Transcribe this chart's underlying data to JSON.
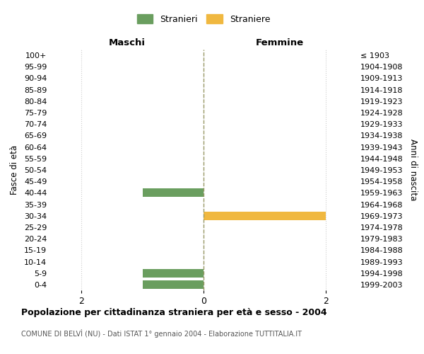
{
  "age_groups": [
    "0-4",
    "5-9",
    "10-14",
    "15-19",
    "20-24",
    "25-29",
    "30-34",
    "35-39",
    "40-44",
    "45-49",
    "50-54",
    "55-59",
    "60-64",
    "65-69",
    "70-74",
    "75-79",
    "80-84",
    "85-89",
    "90-94",
    "95-99",
    "100+"
  ],
  "birth_years": [
    "1999-2003",
    "1994-1998",
    "1989-1993",
    "1984-1988",
    "1979-1983",
    "1974-1978",
    "1969-1973",
    "1964-1968",
    "1959-1963",
    "1954-1958",
    "1949-1953",
    "1944-1948",
    "1939-1943",
    "1934-1938",
    "1929-1933",
    "1924-1928",
    "1919-1923",
    "1914-1918",
    "1909-1913",
    "1904-1908",
    "≤ 1903"
  ],
  "males": [
    1,
    1,
    0,
    0,
    0,
    0,
    0,
    0,
    1,
    0,
    0,
    0,
    0,
    0,
    0,
    0,
    0,
    0,
    0,
    0,
    0
  ],
  "females": [
    0,
    0,
    0,
    0,
    0,
    0,
    2,
    0,
    0,
    0,
    0,
    0,
    0,
    0,
    0,
    0,
    0,
    0,
    0,
    0,
    0
  ],
  "male_color": "#6a9e5f",
  "female_color": "#f0b840",
  "male_label": "Stranieri",
  "female_label": "Straniere",
  "title": "Popolazione per cittadinanza straniera per età e sesso - 2004",
  "subtitle": "COMUNE DI BELVÌ (NU) - Dati ISTAT 1° gennaio 2004 - Elaborazione TUTTITALIA.IT",
  "left_header": "Maschi",
  "right_header": "Femmine",
  "left_yaxis_label": "Fasce di età",
  "right_yaxis_label": "Anni di nascita",
  "xlim": 2.5,
  "xticks": [
    -2,
    0,
    2
  ],
  "xticklabels": [
    "2",
    "0",
    "2"
  ],
  "bg_color": "#ffffff",
  "grid_color": "#cccccc"
}
